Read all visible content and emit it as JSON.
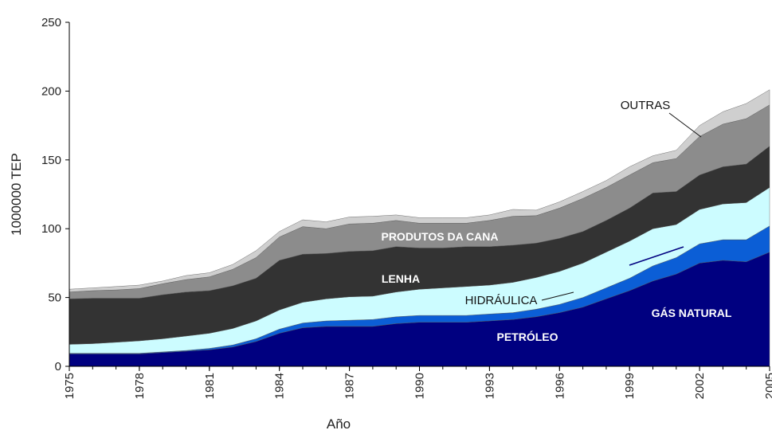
{
  "chart_data": {
    "type": "stacked_area",
    "x_label": "Año",
    "y_label": "1000000 TEP",
    "x": [
      1975,
      1976,
      1977,
      1978,
      1979,
      1980,
      1981,
      1982,
      1983,
      1984,
      1985,
      1986,
      1987,
      1988,
      1989,
      1990,
      1991,
      1992,
      1993,
      1994,
      1995,
      1996,
      1997,
      1998,
      1999,
      2000,
      2001,
      2002,
      2003,
      2004,
      2005
    ],
    "xlim": [
      1975,
      2005
    ],
    "xticks": [
      1975,
      1978,
      1981,
      1984,
      1987,
      1990,
      1993,
      1996,
      1999,
      2002,
      2005
    ],
    "ylim": [
      0,
      250
    ],
    "yticks": [
      0,
      50,
      100,
      150,
      200,
      250
    ],
    "series": [
      {
        "name": "PETRÓLEO",
        "color": "#000080",
        "values": [
          9,
          9,
          9,
          9,
          10,
          11,
          12,
          14,
          18,
          24,
          28,
          29,
          29,
          29,
          31,
          32,
          32,
          32,
          33,
          34,
          36,
          39,
          43,
          49,
          55,
          62,
          67,
          75,
          77,
          76,
          83
        ]
      },
      {
        "name": "GÁS NATURAL",
        "color": "#0b5ed6",
        "values": [
          0.5,
          0.5,
          0.5,
          0.5,
          0.5,
          0.5,
          1,
          1.5,
          2,
          3,
          3.5,
          4,
          4.5,
          5,
          5,
          5,
          5,
          5,
          5,
          5,
          5.5,
          6,
          7,
          8,
          9,
          11,
          12,
          14,
          15,
          16,
          19
        ]
      },
      {
        "name": "HIDRÁULICA",
        "color": "#ccfcff",
        "values": [
          6.5,
          7,
          8,
          9,
          9.5,
          10.5,
          11,
          12,
          13,
          14,
          15,
          16,
          17,
          17,
          18,
          19,
          20,
          21,
          21,
          22,
          23,
          24,
          25,
          26,
          27,
          27,
          24,
          25,
          26,
          27,
          28
        ]
      },
      {
        "name": "LENHA",
        "color": "#333333",
        "values": [
          33,
          33,
          32,
          31,
          32,
          32,
          31,
          31,
          31,
          36,
          35,
          33,
          33,
          33,
          33,
          30,
          29,
          29,
          28,
          27,
          25,
          24,
          23,
          23,
          24,
          26,
          24,
          25,
          27,
          28,
          30
        ]
      },
      {
        "name": "PRODUTOS DA CANA",
        "color": "#8c8c8c",
        "values": [
          5,
          5.5,
          6,
          7,
          8,
          9,
          10,
          12,
          15,
          17,
          20,
          18,
          20,
          20,
          19,
          18,
          18,
          17,
          19,
          21,
          20,
          22,
          24,
          24,
          24,
          22,
          24,
          28,
          31,
          33,
          30
        ]
      },
      {
        "name": "OUTRAS",
        "color": "#cfcfcf",
        "values": [
          2,
          2,
          2.5,
          2.5,
          2,
          3,
          3,
          3.5,
          5,
          4,
          5,
          5,
          5,
          5,
          4,
          4,
          4,
          4,
          4,
          5,
          4,
          4.5,
          5,
          5,
          6,
          5,
          6,
          8,
          9,
          11,
          11
        ]
      }
    ]
  }
}
